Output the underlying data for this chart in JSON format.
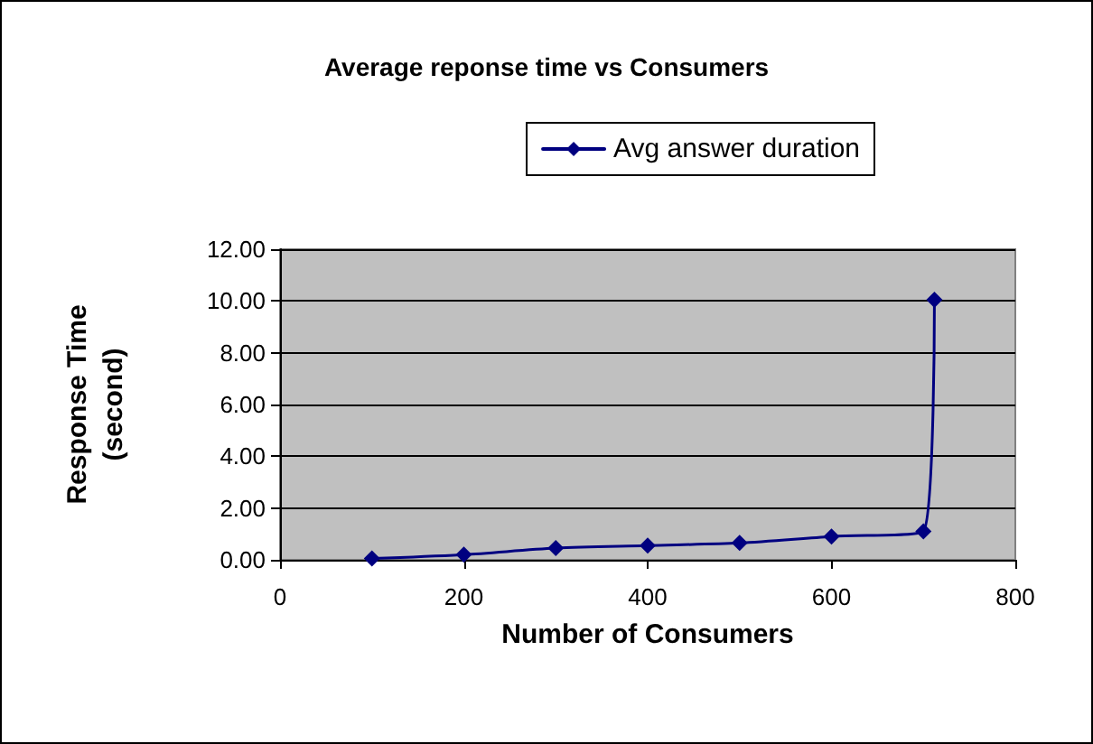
{
  "chart_data": {
    "type": "line",
    "title": "Average reponse time vs Consumers",
    "xlabel": "Number of Consumers",
    "ylabel": "Response Time\n(second)",
    "x": [
      100,
      200,
      300,
      400,
      500,
      600,
      700,
      712
    ],
    "series": [
      {
        "name": "Avg answer duration",
        "color": "#000080",
        "values": [
          0.05,
          0.2,
          0.45,
          0.55,
          0.65,
          0.9,
          1.1,
          10.05
        ]
      }
    ],
    "xlim": [
      0,
      800
    ],
    "xticks": [
      0,
      200,
      400,
      600,
      800
    ],
    "ylim": [
      0,
      12
    ],
    "yticks": [
      {
        "value": 0,
        "label": "0.00"
      },
      {
        "value": 2,
        "label": "2.00"
      },
      {
        "value": 4,
        "label": "4.00"
      },
      {
        "value": 6,
        "label": "6.00"
      },
      {
        "value": 8,
        "label": "8.00"
      },
      {
        "value": 10,
        "label": "10.00"
      },
      {
        "value": 12,
        "label": "12.00"
      }
    ],
    "grid": "y",
    "legend": "top right",
    "marker": "diamond",
    "line_style": "solid"
  }
}
